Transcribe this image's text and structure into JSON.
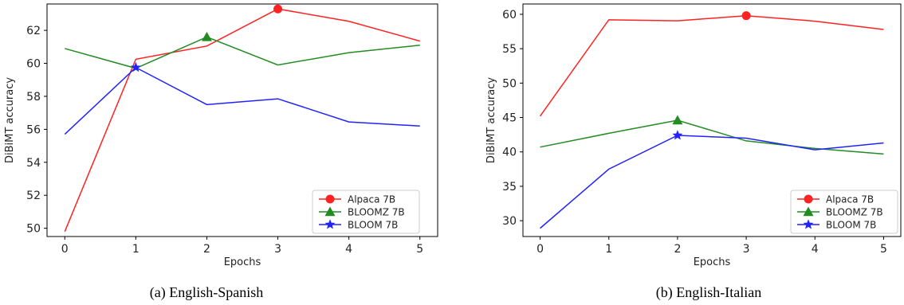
{
  "chart_data": [
    {
      "type": "line",
      "caption": "(a) English-Spanish",
      "xlabel": "Epochs",
      "ylabel": "DiBiMT accuracy",
      "x": [
        0,
        1,
        2,
        3,
        4,
        5
      ],
      "xticks": [
        0,
        1,
        2,
        3,
        4,
        5
      ],
      "yticks": [
        50,
        52,
        54,
        56,
        58,
        60,
        62
      ],
      "ylim": [
        49.5,
        63.6
      ],
      "xlim": [
        -0.25,
        5.25
      ],
      "grid": false,
      "legend_position": "bottom-right",
      "series": [
        {
          "name": "Alpaca 7B",
          "color": "#ff2222",
          "marker": "circle",
          "values": [
            49.8,
            60.25,
            61.05,
            63.3,
            62.55,
            61.35
          ],
          "highlight_index": 3
        },
        {
          "name": "BLOOMZ 7B",
          "color": "#228b22",
          "marker": "triangle",
          "values": [
            60.9,
            59.7,
            61.6,
            59.9,
            60.65,
            61.1
          ],
          "highlight_index": 2
        },
        {
          "name": "BLOOM 7B",
          "color": "#2222ff",
          "marker": "star",
          "values": [
            55.7,
            59.75,
            57.5,
            57.85,
            56.45,
            56.2
          ],
          "highlight_index": 1
        }
      ]
    },
    {
      "type": "line",
      "caption": "(b) English-Italian",
      "xlabel": "Epochs",
      "ylabel": "DiBiMT accuracy",
      "x": [
        0,
        1,
        2,
        3,
        4,
        5
      ],
      "xticks": [
        0,
        1,
        2,
        3,
        4,
        5
      ],
      "yticks": [
        30,
        35,
        40,
        45,
        50,
        55,
        60
      ],
      "ylim": [
        27.7,
        61.5
      ],
      "xlim": [
        -0.25,
        5.25
      ],
      "grid": false,
      "legend_position": "bottom-right",
      "series": [
        {
          "name": "Alpaca 7B",
          "color": "#ff2222",
          "marker": "circle",
          "values": [
            45.2,
            59.2,
            59.05,
            59.8,
            59.0,
            57.8
          ],
          "highlight_index": 3
        },
        {
          "name": "BLOOMZ 7B",
          "color": "#228b22",
          "marker": "triangle",
          "values": [
            40.7,
            42.7,
            44.6,
            41.6,
            40.5,
            39.7
          ],
          "highlight_index": 2
        },
        {
          "name": "BLOOM 7B",
          "color": "#2222ff",
          "marker": "star",
          "values": [
            28.9,
            37.5,
            42.4,
            42.0,
            40.3,
            41.3
          ],
          "highlight_index": 2
        }
      ]
    }
  ]
}
